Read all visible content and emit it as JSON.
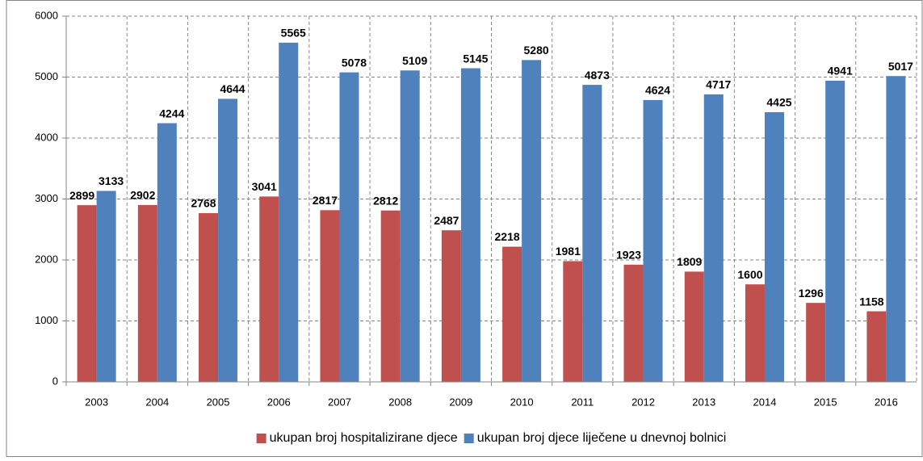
{
  "chart_data": {
    "type": "bar",
    "categories": [
      "2003",
      "2004",
      "2005",
      "2006",
      "2007",
      "2008",
      "2009",
      "2010",
      "2011",
      "2012",
      "2013",
      "2014",
      "2015",
      "2016"
    ],
    "series": [
      {
        "name": "ukupan broj hospitalizirane djece",
        "color": "#c0504d",
        "values": [
          2899,
          2902,
          2768,
          3041,
          2817,
          2812,
          2487,
          2218,
          1981,
          1923,
          1809,
          1600,
          1296,
          1158
        ]
      },
      {
        "name": "ukupan broj djece liječene u dnevnoj bolnici",
        "color": "#4f81bd",
        "values": [
          3133,
          4244,
          4644,
          5565,
          5078,
          5109,
          5145,
          5280,
          4873,
          4624,
          4717,
          4425,
          4941,
          5017
        ]
      }
    ],
    "ylim": [
      0,
      6000
    ],
    "yticks": [
      0,
      1000,
      2000,
      3000,
      4000,
      5000,
      6000
    ],
    "grid": true,
    "legend": "bottom"
  }
}
